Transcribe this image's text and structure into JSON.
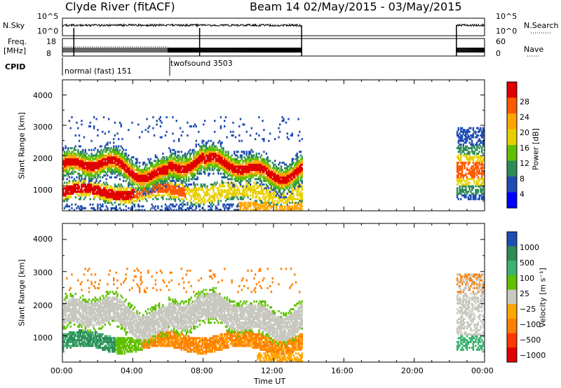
{
  "header": {
    "station": "Clyde River (fitACF)",
    "beam_range": "Beam 14 02/May/2015 - 03/May/2015"
  },
  "aux_panels": {
    "nsky_label": "N.Sky",
    "nsearch_label": "N.Search",
    "nsky_ticks": [
      "10^5",
      "10^0"
    ],
    "nsearch_ticks": [
      "10^5",
      "10^0"
    ],
    "freq_label_1": "Freq.",
    "freq_label_2": "[MHz]",
    "freq_ticks": [
      "18",
      "8"
    ],
    "nave_label": "Nave",
    "nave_ticks": [
      "60",
      "0"
    ],
    "cpid_label": "CPID",
    "cpid_1": "normal (fast) 151",
    "cpid_2": "twofsound 3503"
  },
  "chart_data": [
    {
      "type": "heatmap",
      "title": "",
      "xlabel": "Time UT",
      "ylabel": "Slant Range [km]",
      "x_ticks": [
        "00:00",
        "04:00",
        "08:00",
        "12:00",
        "16:00",
        "20:00",
        "00:00"
      ],
      "y_ticks": [
        "1000",
        "2000",
        "3000",
        "4000"
      ],
      "xlim_hours": [
        0,
        24
      ],
      "ylim_km": [
        180,
        4500
      ],
      "data_gaps_hours": [
        [
          13.6,
          22.4
        ]
      ],
      "colorbar": {
        "label": "Power [dB]",
        "ticks": [
          "28",
          "24",
          "20",
          "16",
          "12",
          "8",
          "4"
        ],
        "colors": [
          "#e00000",
          "#ff5a00",
          "#ffa500",
          "#e8d000",
          "#60c000",
          "#2e8b57",
          "#1e4db3",
          "#0000ff"
        ]
      },
      "echo_bands": [
        {
          "t0": 0.0,
          "t1": 13.6,
          "range_km": [
            1300,
            1900
          ],
          "value": "20-28 dB"
        },
        {
          "t0": 0.0,
          "t1": 7.0,
          "range_km": [
            400,
            1000
          ],
          "value": "24-30 dB"
        },
        {
          "t0": 22.4,
          "t1": 24.0,
          "range_km": [
            600,
            2800
          ],
          "value": "8-24 dB"
        }
      ]
    },
    {
      "type": "heatmap",
      "title": "",
      "xlabel": "Time UT",
      "ylabel": "Slant Range [km]",
      "x_ticks": [
        "00:00",
        "04:00",
        "08:00",
        "12:00",
        "16:00",
        "20:00",
        "00:00"
      ],
      "y_ticks": [
        "1000",
        "2000",
        "3000",
        "4000"
      ],
      "xlim_hours": [
        0,
        24
      ],
      "ylim_km": [
        180,
        4500
      ],
      "data_gaps_hours": [
        [
          13.6,
          22.4
        ]
      ],
      "colorbar": {
        "label": "Velocity [m s⁻¹]",
        "ticks": [
          "1000",
          "500",
          "100",
          "25",
          "−25",
          "−100",
          "−500",
          "−1000"
        ],
        "colors": [
          "#1e4db3",
          "#2e8b57",
          "#3cb371",
          "#60c000",
          "#c8c8c0",
          "#ffa500",
          "#ff7f00",
          "#ff3800",
          "#e00000"
        ]
      },
      "echo_bands": [
        {
          "t0": 0.0,
          "t1": 13.6,
          "range_km": [
            1400,
            2400
          ],
          "value": "-25..25 m/s"
        },
        {
          "t0": 3.0,
          "t1": 13.6,
          "range_km": [
            600,
            1200
          ],
          "value": "-100..-500 m/s"
        },
        {
          "t0": 0.0,
          "t1": 3.0,
          "range_km": [
            600,
            1000
          ],
          "value": "100..500 m/s"
        }
      ]
    }
  ]
}
